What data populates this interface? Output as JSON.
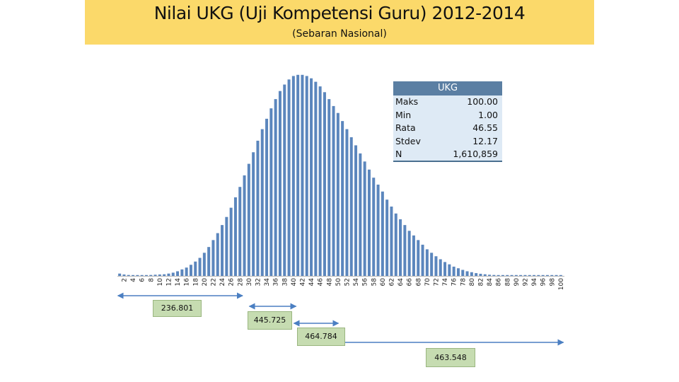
{
  "header": {
    "title": "Nilai UKG (Uji Kompetensi Guru) 2012-2014",
    "subtitle": "(Sebaran Nasional)"
  },
  "stats": {
    "heading": "UKG",
    "rows": [
      {
        "label": "Maks",
        "value": "100.00"
      },
      {
        "label": "Min",
        "value": "1.00"
      },
      {
        "label": "Rata",
        "value": "46.55"
      },
      {
        "label": "Stdev",
        "value": "12.17"
      },
      {
        "label": "N",
        "value": "1,610,859"
      }
    ]
  },
  "ranges": [
    {
      "label": "236.801",
      "from": 1,
      "to": 28
    },
    {
      "label": "445.725",
      "from": 30.5,
      "to": 40
    },
    {
      "label": "464.784",
      "from": 40.5,
      "to": 49.5
    },
    {
      "label": "463.548",
      "from": 50.5,
      "to": 100
    }
  ],
  "colors": {
    "bar": "#5b86bd",
    "banner": "#fbd96a",
    "arrow": "#4b7fc2",
    "range_box": "#c6dcb1",
    "stats_header": "#5b7fa3",
    "stats_body": "#deeaf5"
  },
  "chart_data": {
    "type": "bar",
    "title": "Nilai UKG (Uji Kompetensi Guru) 2012-2014",
    "subtitle": "(Sebaran Nasional)",
    "xlabel": "",
    "ylabel": "",
    "y_axis_shown": false,
    "grid": false,
    "categories": [
      1,
      2,
      3,
      4,
      5,
      6,
      7,
      8,
      9,
      10,
      11,
      12,
      13,
      14,
      15,
      16,
      17,
      18,
      19,
      20,
      21,
      22,
      23,
      24,
      25,
      26,
      27,
      28,
      29,
      30,
      31,
      32,
      33,
      34,
      35,
      36,
      37,
      38,
      39,
      40,
      41,
      42,
      43,
      44,
      45,
      46,
      47,
      48,
      49,
      50,
      51,
      52,
      53,
      54,
      55,
      56,
      57,
      58,
      59,
      60,
      61,
      62,
      63,
      64,
      65,
      66,
      67,
      68,
      69,
      70,
      71,
      72,
      73,
      74,
      75,
      76,
      77,
      78,
      79,
      80,
      81,
      82,
      83,
      84,
      85,
      86,
      87,
      88,
      89,
      90,
      91,
      92,
      93,
      94,
      95,
      96,
      97,
      98,
      99,
      100
    ],
    "tick_labels": [
      2,
      4,
      6,
      8,
      10,
      12,
      14,
      16,
      18,
      20,
      22,
      24,
      26,
      28,
      30,
      32,
      34,
      36,
      38,
      40,
      42,
      44,
      46,
      48,
      50,
      52,
      54,
      56,
      58,
      60,
      62,
      64,
      66,
      68,
      70,
      72,
      74,
      76,
      78,
      80,
      82,
      84,
      86,
      88,
      90,
      92,
      94,
      96,
      98,
      100
    ],
    "values": [
      1.0,
      0.6,
      0.4,
      0.3,
      0.3,
      0.3,
      0.3,
      0.4,
      0.5,
      0.6,
      0.7,
      1.0,
      1.4,
      2.0,
      2.8,
      3.6,
      4.8,
      6.2,
      7.8,
      10.0,
      12.5,
      15.5,
      18.5,
      22.0,
      25.5,
      29.5,
      34.0,
      38.5,
      43.5,
      48.5,
      53.5,
      58.5,
      63.5,
      68.0,
      72.5,
      76.5,
      80.0,
      82.8,
      85.0,
      86.5,
      87.0,
      87.0,
      86.5,
      85.5,
      84.0,
      82.0,
      79.5,
      76.5,
      73.5,
      70.5,
      67.0,
      63.5,
      60.0,
      56.5,
      53.0,
      49.5,
      46.0,
      42.5,
      39.5,
      36.5,
      33.0,
      30.0,
      27.0,
      24.5,
      22.0,
      19.5,
      17.5,
      15.5,
      13.5,
      11.5,
      10.0,
      8.5,
      7.2,
      6.0,
      5.0,
      4.0,
      3.3,
      2.6,
      2.0,
      1.6,
      1.2,
      0.9,
      0.7,
      0.5,
      0.4,
      0.3,
      0.2,
      0.15,
      0.1,
      0.08,
      0.05,
      0.05,
      0.04,
      0.03,
      0.03,
      0.02,
      0.02,
      0.02,
      0.01,
      0.01
    ],
    "ylim": [
      0,
      90
    ]
  }
}
